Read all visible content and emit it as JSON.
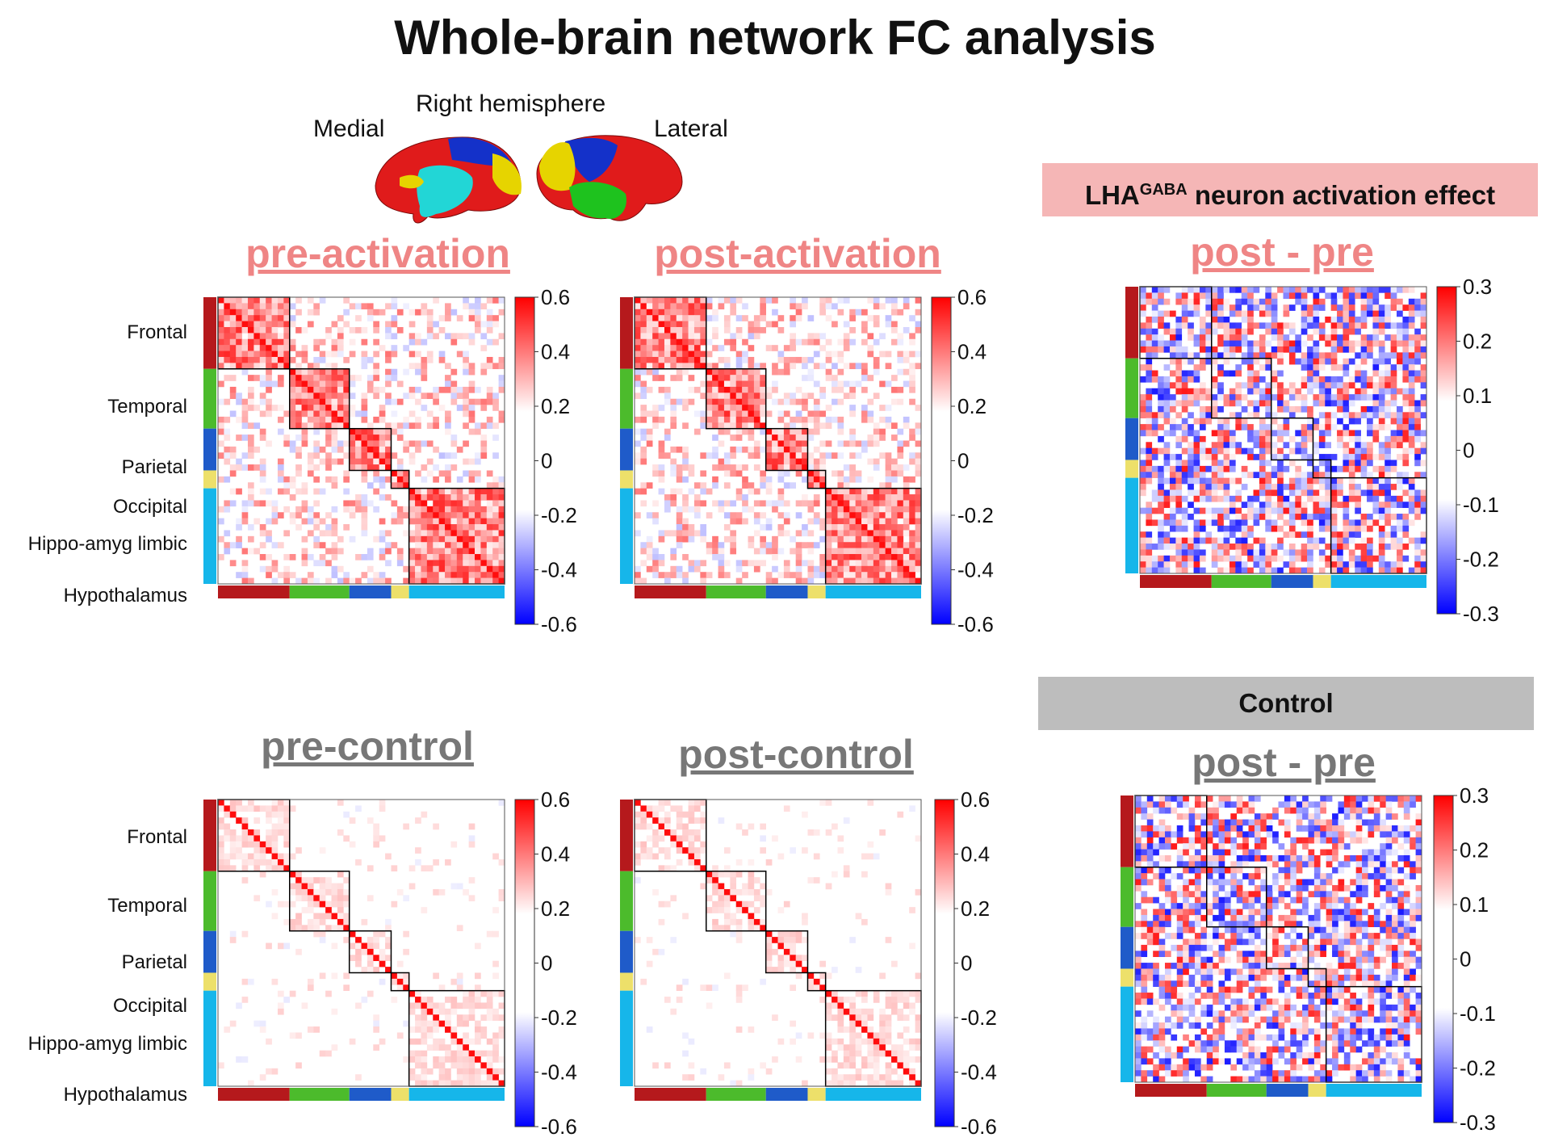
{
  "title": "Whole-brain network FC analysis",
  "brain": {
    "hemisphere_label": "Right hemisphere",
    "medial_label": "Medial",
    "lateral_label": "Lateral"
  },
  "colors": {
    "frontal": "#b5191c",
    "temporal": "#4cbb2c",
    "parietal": "#1f5bc9",
    "occipital": "#ede06a",
    "limbic": "#16b6ea",
    "hypothalamus": "#16b6ea",
    "positive": "#ff0000",
    "negative": "#0000ff",
    "title_pink": "#ef8585",
    "title_gray": "#777777",
    "banner_pink": "#f5b6b6",
    "banner_gray": "#bdbdbd"
  },
  "region_labels": [
    "Frontal",
    "Temporal",
    "Parietal",
    "Occipital",
    "Hippo-amyg  limbic",
    "Hypothalamus"
  ],
  "banners": {
    "activation": {
      "prefix": "LHA",
      "sup": "GABA",
      "suffix": " neuron activation effect"
    },
    "control": {
      "text": "Control"
    }
  },
  "panels": {
    "pre_activation": {
      "title": "pre-activation"
    },
    "post_activation": {
      "title": "post-activation"
    },
    "diff_activation": {
      "title": "post - pre"
    },
    "pre_control": {
      "title": "pre-control"
    },
    "post_control": {
      "title": "post-control"
    },
    "diff_control": {
      "title": "post - pre"
    }
  },
  "colorbars": {
    "fc_ticks": [
      "0.6",
      "0.4",
      "0.2",
      "0",
      "-0.2",
      "-0.4",
      "-0.6"
    ],
    "diff_ticks": [
      "0.3",
      "0.2",
      "0.1",
      "0",
      "-0.1",
      "-0.2",
      "-0.3"
    ]
  },
  "chart_data": {
    "type": "heatmap",
    "fc_range": [
      -0.6,
      0.6
    ],
    "diff_range": [
      -0.3,
      0.3
    ],
    "modules": [
      "Frontal",
      "Temporal",
      "Parietal",
      "Occipital",
      "Hippo-amyg limbic",
      "Hypothalamus"
    ]
  }
}
